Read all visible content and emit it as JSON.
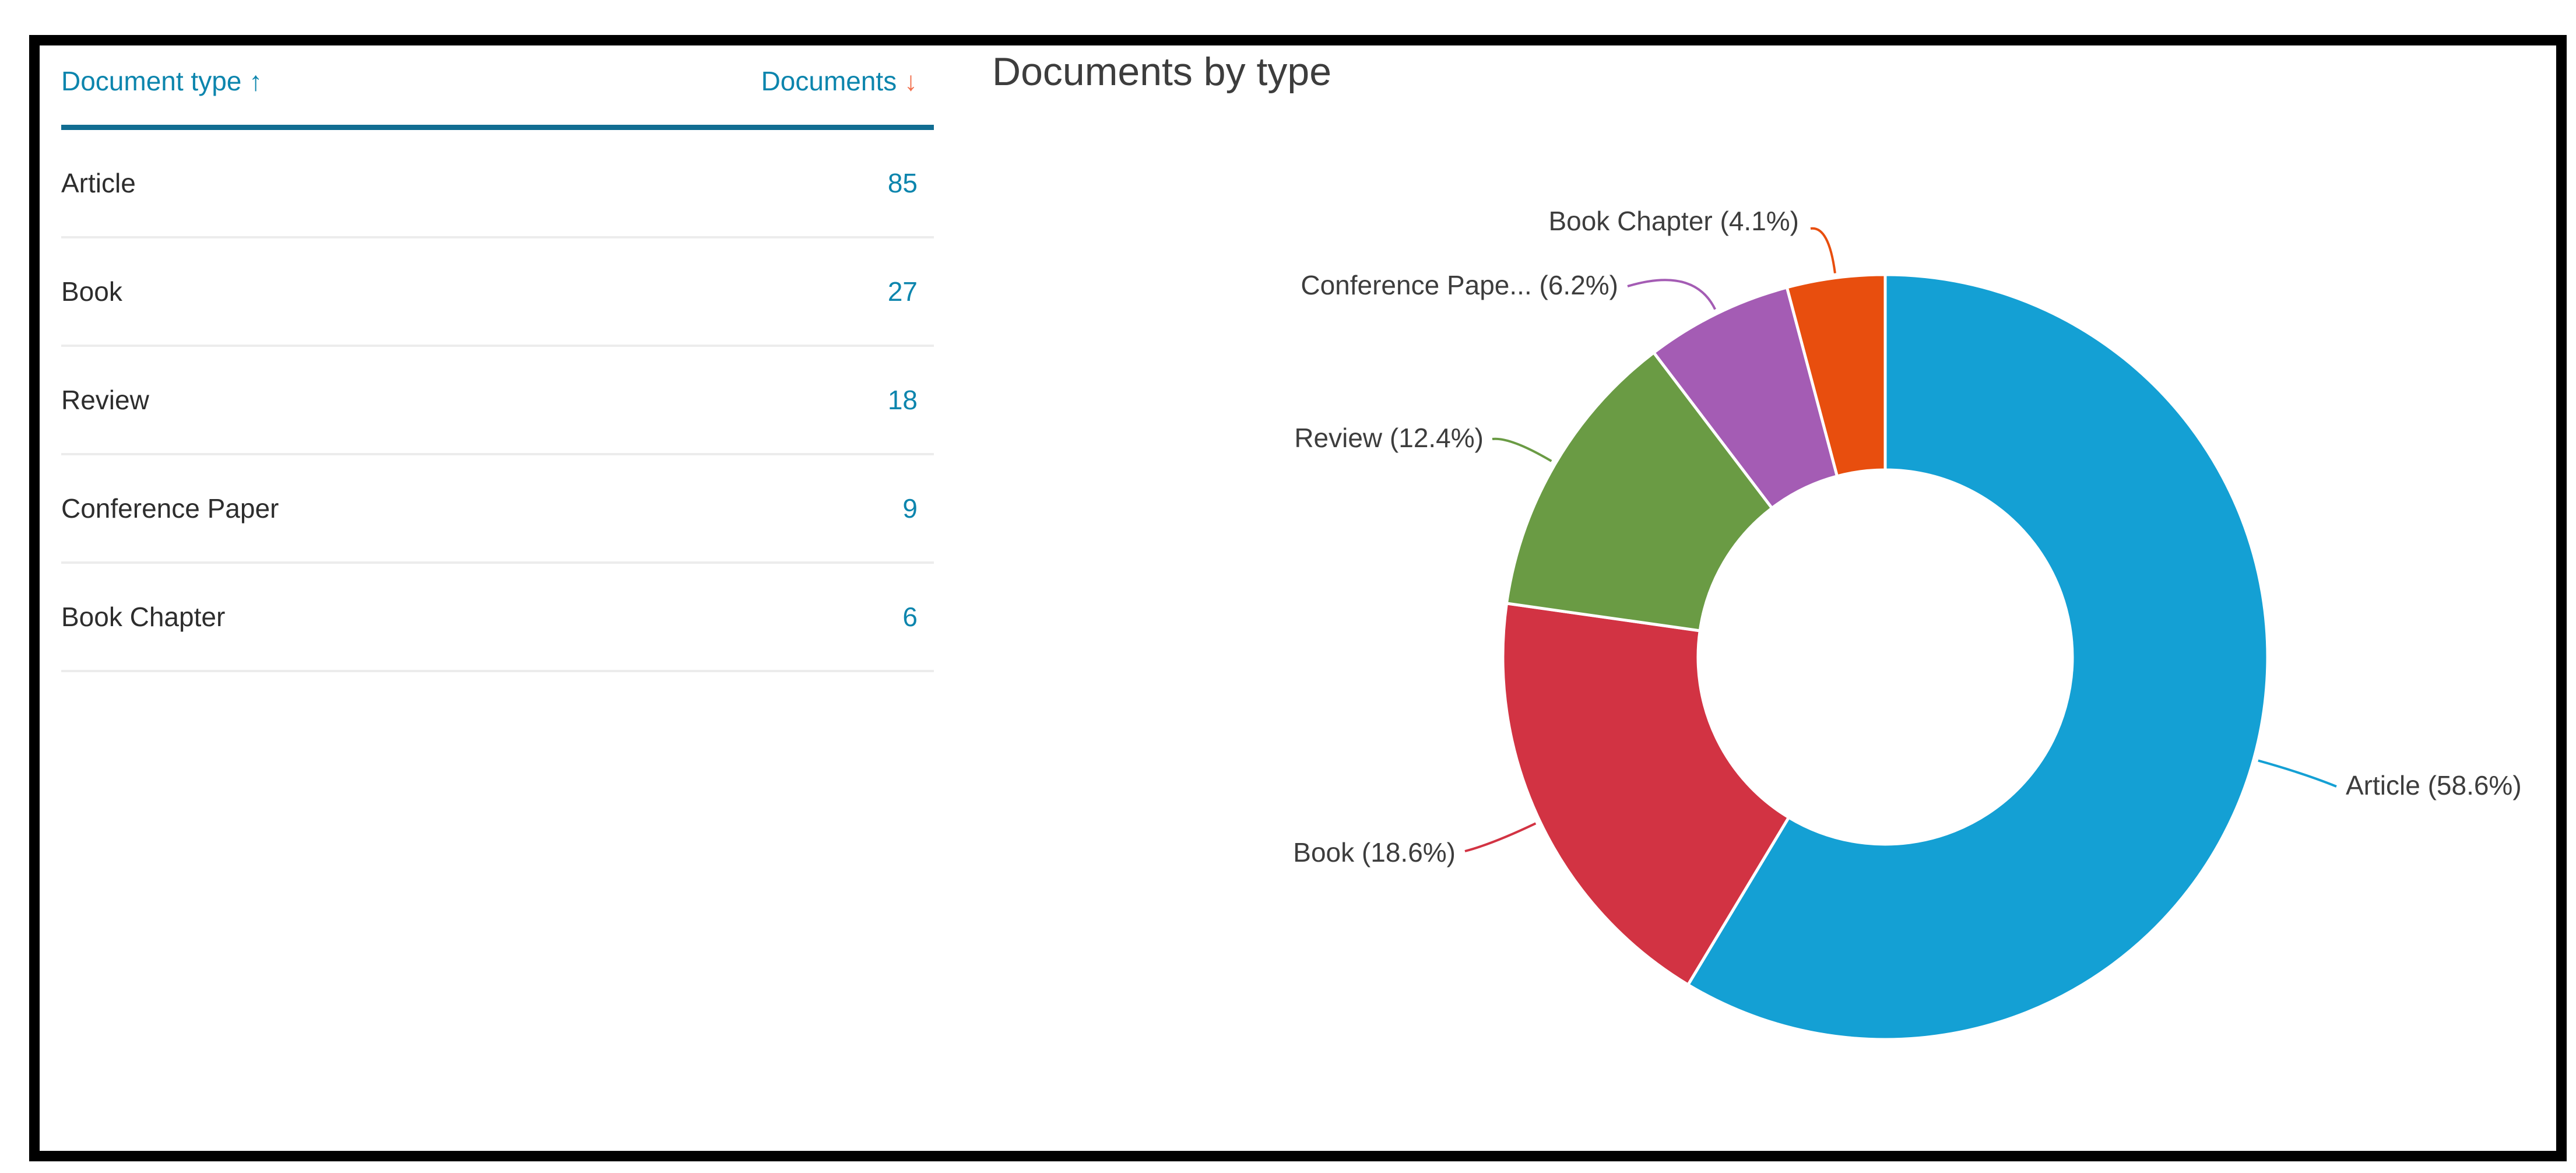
{
  "table": {
    "header": {
      "type_label": "Document type",
      "asc_icon": "↑",
      "docs_label": "Documents",
      "desc_icon": "↓"
    },
    "rows": [
      {
        "type": "Article",
        "documents": "85"
      },
      {
        "type": "Book",
        "documents": "27"
      },
      {
        "type": "Review",
        "documents": "18"
      },
      {
        "type": "Conference Paper",
        "documents": "9"
      },
      {
        "type": "Book Chapter",
        "documents": "6"
      }
    ]
  },
  "chart": {
    "title": "Documents by type"
  },
  "colors": {
    "link_teal": "#0c85ad",
    "header_rule_teal": "#116d92",
    "sort_desc_arrow": "#f2704e",
    "label_text": "#3d3d3d",
    "frame_black": "#000000"
  },
  "chart_data": {
    "type": "pie",
    "subtype": "donut",
    "title": "Documents by type",
    "legend_position": "none",
    "inner_radius_ratio": 0.49,
    "slices": [
      {
        "category": "Article",
        "value": 85,
        "percent": 58.6,
        "label": "Article (58.6%)",
        "color": "#14a0d4"
      },
      {
        "category": "Book",
        "value": 27,
        "percent": 18.6,
        "label": "Book (18.6%)",
        "color": "#d23343"
      },
      {
        "category": "Review",
        "value": 18,
        "percent": 12.4,
        "label": "Review (12.4%)",
        "color": "#6a9b44"
      },
      {
        "category": "Conference Paper",
        "value": 9,
        "percent": 6.2,
        "label": "Conference Pape... (6.2%)",
        "color": "#a45cb4"
      },
      {
        "category": "Book Chapter",
        "value": 6,
        "percent": 4.1,
        "label": "Book Chapter (4.1%)",
        "color": "#e84e0e"
      }
    ]
  }
}
